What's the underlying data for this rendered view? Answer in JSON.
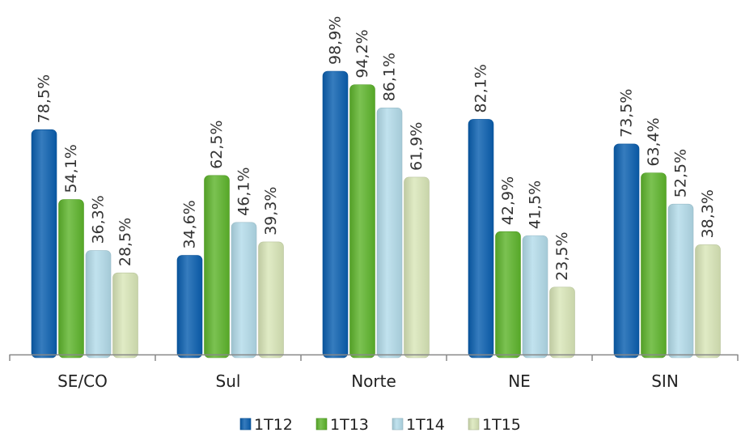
{
  "chart_data": {
    "type": "bar",
    "categories": [
      "SE/CO",
      "Sul",
      "Norte",
      "NE",
      "SIN"
    ],
    "series": [
      {
        "name": "1T12",
        "values": [
          78.5,
          34.6,
          98.9,
          82.1,
          73.5
        ],
        "labels": [
          "78,5%",
          "34,6%",
          "98,9%",
          "82,1%",
          "73,5%"
        ]
      },
      {
        "name": "1T13",
        "values": [
          54.1,
          62.5,
          94.2,
          42.9,
          63.4
        ],
        "labels": [
          "54,1%",
          "62,5%",
          "94,2%",
          "42,9%",
          "63,4%"
        ]
      },
      {
        "name": "1T14",
        "values": [
          36.3,
          46.1,
          86.1,
          41.5,
          52.5
        ],
        "labels": [
          "36,3%",
          "46,1%",
          "86,1%",
          "41,5%",
          "52,5%"
        ]
      },
      {
        "name": "1T15",
        "values": [
          28.5,
          39.3,
          61.9,
          23.5,
          38.3
        ],
        "labels": [
          "28,5%",
          "39,3%",
          "61,9%",
          "23,5%",
          "38,3%"
        ]
      }
    ],
    "colors": [
      "#0a5fb0",
      "#5eb52c",
      "#b3dcea",
      "#d9e6b8"
    ],
    "ylim": [
      0,
      100
    ],
    "grid": false,
    "legend": "bottom",
    "title": "",
    "xlabel": "",
    "ylabel": ""
  }
}
